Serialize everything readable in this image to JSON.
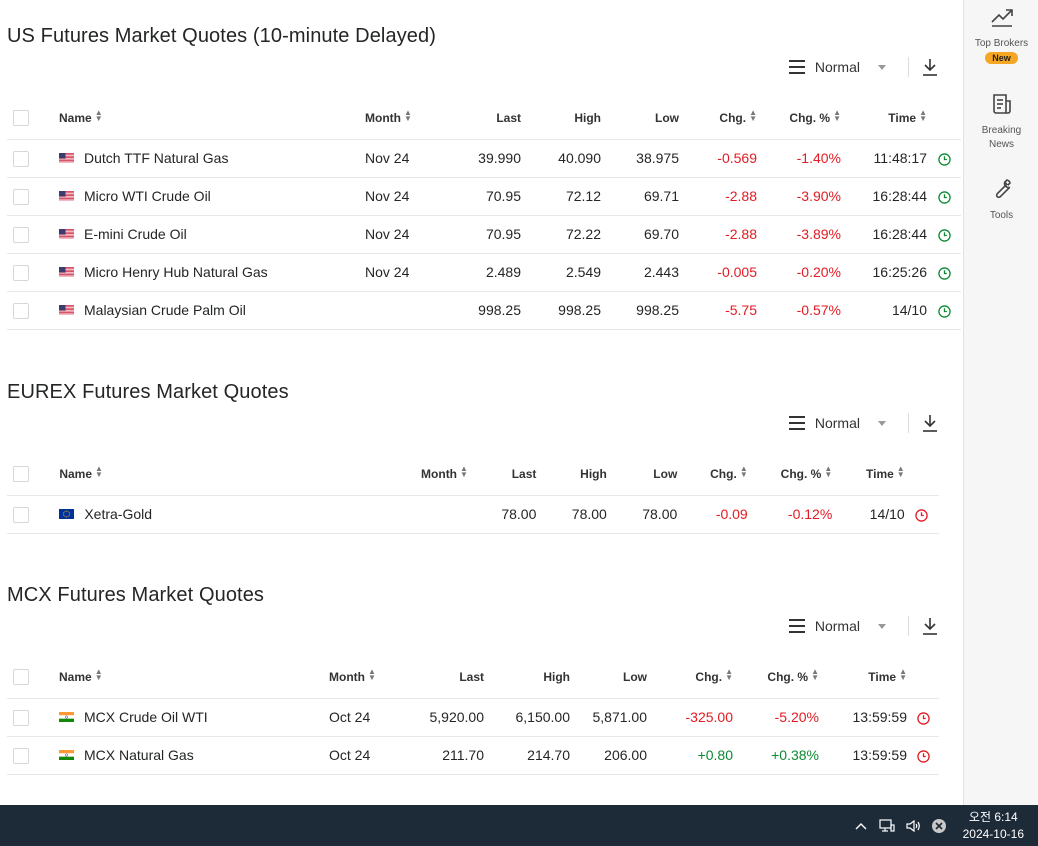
{
  "sections": [
    {
      "title": "US Futures Market Quotes (10-minute Delayed)",
      "view_label": "Normal",
      "headers": {
        "name": "Name",
        "month": "Month",
        "last": "Last",
        "high": "High",
        "low": "Low",
        "chg": "Chg.",
        "chg_pct": "Chg. %",
        "time": "Time"
      },
      "rows": [
        {
          "flag": "us",
          "name": "Dutch TTF Natural Gas",
          "month": "Nov 24",
          "last": "39.990",
          "high": "40.090",
          "low": "38.975",
          "chg": "-0.569",
          "chg_pct": "-1.40%",
          "time": "11:48:17",
          "status": "open"
        },
        {
          "flag": "us",
          "name": "Micro WTI Crude Oil",
          "month": "Nov 24",
          "last": "70.95",
          "high": "72.12",
          "low": "69.71",
          "chg": "-2.88",
          "chg_pct": "-3.90%",
          "time": "16:28:44",
          "status": "open"
        },
        {
          "flag": "us",
          "name": "E-mini Crude Oil",
          "month": "Nov 24",
          "last": "70.95",
          "high": "72.22",
          "low": "69.70",
          "chg": "-2.88",
          "chg_pct": "-3.89%",
          "time": "16:28:44",
          "status": "open"
        },
        {
          "flag": "us",
          "name": "Micro Henry Hub Natural Gas",
          "month": "Nov 24",
          "last": "2.489",
          "high": "2.549",
          "low": "2.443",
          "chg": "-0.005",
          "chg_pct": "-0.20%",
          "time": "16:25:26",
          "status": "open"
        },
        {
          "flag": "us",
          "name": "Malaysian Crude Palm Oil",
          "month": "",
          "last": "998.25",
          "high": "998.25",
          "low": "998.25",
          "chg": "-5.75",
          "chg_pct": "-0.57%",
          "time": "14/10",
          "status": "open"
        }
      ]
    },
    {
      "title": "EUREX Futures Market Quotes",
      "view_label": "Normal",
      "headers": {
        "name": "Name",
        "month": "Month",
        "last": "Last",
        "high": "High",
        "low": "Low",
        "chg": "Chg.",
        "chg_pct": "Chg. %",
        "time": "Time"
      },
      "rows": [
        {
          "flag": "eu",
          "name": "Xetra-Gold",
          "month": "",
          "last": "78.00",
          "high": "78.00",
          "low": "78.00",
          "chg": "-0.09",
          "chg_pct": "-0.12%",
          "time": "14/10",
          "status": "closed"
        }
      ]
    },
    {
      "title": "MCX Futures Market Quotes",
      "view_label": "Normal",
      "headers": {
        "name": "Name",
        "month": "Month",
        "last": "Last",
        "high": "High",
        "low": "Low",
        "chg": "Chg.",
        "chg_pct": "Chg. %",
        "time": "Time"
      },
      "rows": [
        {
          "flag": "in",
          "name": "MCX Crude Oil WTI",
          "month": "Oct 24",
          "last": "5,920.00",
          "high": "6,150.00",
          "low": "5,871.00",
          "chg": "-325.00",
          "chg_pct": "-5.20%",
          "time": "13:59:59",
          "status": "closed"
        },
        {
          "flag": "in",
          "name": "MCX Natural Gas",
          "month": "Oct 24",
          "last": "211.70",
          "high": "214.70",
          "low": "206.00",
          "chg": "+0.80",
          "chg_pct": "+0.38%",
          "time": "13:59:59",
          "status": "closed"
        }
      ]
    }
  ],
  "sidebar": {
    "top_brokers": "Top Brokers",
    "new_badge": "New",
    "breaking_news": "Breaking News",
    "tools": "Tools"
  },
  "taskbar": {
    "time": "오전 6:14",
    "date": "2024-10-16"
  },
  "colors": {
    "negative": "#e31b23",
    "positive": "#0b8a33",
    "status_open": "#0b8a33",
    "status_closed": "#e31b23",
    "taskbar_bg": "#1d2a38",
    "badge": "#f5a623"
  },
  "icons": {
    "view_menu": "hamburger-icon",
    "download": "download-icon",
    "status": "clock-icon",
    "top_brokers": "trend-chart-icon",
    "breaking_news": "news-icon",
    "tools": "wrench-icon"
  }
}
